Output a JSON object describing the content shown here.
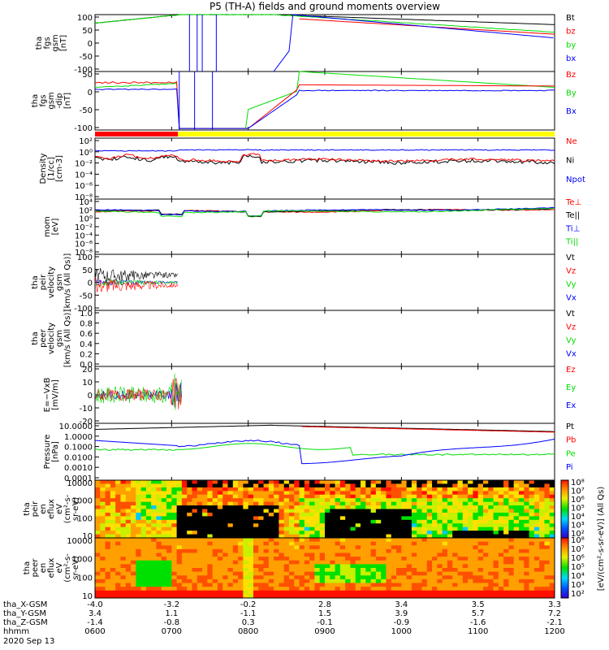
{
  "title": "P5 (TH-A) fields and ground moments overview",
  "colors": {
    "black": "#000000",
    "red": "#ff0000",
    "green": "#00dd00",
    "blue": "#0000ff",
    "yellow": "#ffff00"
  },
  "chart_data": [
    {
      "type": "line",
      "panel": "fgs_gsm",
      "ylabel": [
        "tha",
        "fgs",
        "gsm",
        "[nT]"
      ],
      "ylim": [
        -100,
        100
      ],
      "ytick_labels": [
        "100",
        "50",
        "0",
        "-50",
        "-100"
      ],
      "legend": [
        {
          "label": "Bt",
          "color": "black"
        },
        {
          "label": "bz",
          "color": "red"
        },
        {
          "label": "by",
          "color": "green"
        },
        {
          "label": "bx",
          "color": "blue"
        }
      ]
    },
    {
      "type": "line",
      "panel": "fgs_gsm_dip",
      "ylabel": [
        "tha",
        "fgs",
        "gsm",
        "-dip",
        "[nT]"
      ],
      "ylim": [
        -125,
        60
      ],
      "ytick_labels": [
        "50",
        "0",
        "-50",
        "-100"
      ],
      "legend": [
        {
          "label": "Bz",
          "color": "red"
        },
        {
          "label": "By",
          "color": "green"
        },
        {
          "label": "Bx",
          "color": "blue"
        }
      ]
    },
    {
      "type": "line",
      "panel": "density",
      "ylabel": [
        "Density",
        "[1/cc]",
        "[cm-3]"
      ],
      "log": true,
      "ytick_labels": [
        "10²",
        "10⁰",
        "10⁻²",
        "10⁻⁴",
        "10⁻⁶",
        "10⁻⁸"
      ],
      "legend": [
        {
          "label": "Ne",
          "color": "red"
        },
        {
          "label": "Ni",
          "color": "black"
        },
        {
          "label": "Npot",
          "color": "blue"
        }
      ]
    },
    {
      "type": "line",
      "panel": "temperature",
      "ylabel": [
        "mom",
        "[eV]"
      ],
      "log": true,
      "ytick_labels": [
        "10⁴",
        "10²",
        "10⁰",
        "10⁻²",
        "10⁻⁴",
        "10⁻⁶",
        "10⁻⁸"
      ],
      "legend": [
        {
          "label": "Te⊥",
          "color": "red"
        },
        {
          "label": "Te||",
          "color": "black"
        },
        {
          "label": "Ti⊥",
          "color": "blue"
        },
        {
          "label": "Ti||",
          "color": "green"
        }
      ]
    },
    {
      "type": "line",
      "panel": "peir_velocity",
      "ylabel": [
        "tha",
        "peir",
        "velocity",
        "gsm",
        "[km/s (All Qs)]"
      ],
      "ylim": [
        -100,
        100
      ],
      "ytick_labels": [
        "100",
        "50",
        "0",
        "-50",
        "-100"
      ],
      "legend": [
        {
          "label": "Vt",
          "color": "black"
        },
        {
          "label": "Vz",
          "color": "red"
        },
        {
          "label": "Vy",
          "color": "green"
        },
        {
          "label": "Vx",
          "color": "blue"
        }
      ]
    },
    {
      "type": "line",
      "panel": "peer_velocity",
      "ylabel": [
        "tha",
        "peer",
        "velocity",
        "gsm",
        "[km/s (All Qs)]"
      ],
      "ylim": [
        0,
        1
      ],
      "ytick_labels": [
        "1.0",
        "0.8",
        "0.6",
        "0.4",
        "0.2",
        "0.0"
      ],
      "legend": [
        {
          "label": "Vt",
          "color": "black"
        },
        {
          "label": "Vz",
          "color": "red"
        },
        {
          "label": "Vy",
          "color": "green"
        },
        {
          "label": "Vx",
          "color": "blue"
        }
      ]
    },
    {
      "type": "line",
      "panel": "e_field",
      "ylabel": [
        "E=−VxB",
        "[mV/m]"
      ],
      "ylim": [
        -20,
        20
      ],
      "ytick_labels": [
        "20",
        "10",
        "0",
        "-10",
        "-20"
      ],
      "legend": [
        {
          "label": "Ez",
          "color": "red"
        },
        {
          "label": "Ey",
          "color": "green"
        },
        {
          "label": "Ex",
          "color": "blue"
        }
      ]
    },
    {
      "type": "line",
      "panel": "pressure",
      "ylabel": [
        "Pressure",
        "[nPa]"
      ],
      "log": true,
      "ytick_labels": [
        "10.0000",
        "1.0000",
        "0.1000",
        "0.0100",
        "0.0010",
        "0.0001"
      ],
      "legend": [
        {
          "label": "Pt",
          "color": "black"
        },
        {
          "label": "Pb",
          "color": "red"
        },
        {
          "label": "Pe",
          "color": "green"
        },
        {
          "label": "Pi",
          "color": "blue"
        }
      ]
    },
    {
      "type": "heatmap",
      "panel": "peir_en_eflux",
      "ylabel": [
        "tha",
        "peir",
        "en",
        "eflux",
        "eV",
        "(cm²-s-",
        "sr-eV)"
      ],
      "ytick_labels": [
        "10000",
        "1000",
        "100",
        "10"
      ],
      "colorbar_ticks": [
        "10⁸",
        "10⁷",
        "10⁶",
        "10⁵",
        "10⁴",
        "10³",
        "10²"
      ]
    },
    {
      "type": "heatmap",
      "panel": "peer_en_eflux",
      "ylabel": [
        "tha",
        "peer",
        "en",
        "eflux",
        "eV",
        "(cm²-s-",
        "sr-eV)"
      ],
      "ytick_labels": [
        "10000",
        "1000",
        "100",
        "10"
      ],
      "colorbar_ticks": [
        "10⁸",
        "10⁷",
        "10⁶",
        "10⁵",
        "10⁴",
        "10³",
        "10²"
      ]
    }
  ],
  "colorbar_label": "[eV/(cm²-s-sr-eV)] (All Qs)",
  "xaxis": {
    "rows": [
      {
        "label": "tha_X-GSM",
        "values": [
          "-4.0",
          "-3.2",
          "-0.2",
          "2.8",
          "3.4",
          "3.5",
          "3.3"
        ]
      },
      {
        "label": "tha_Y-GSM",
        "values": [
          "3.4",
          "1.1",
          "-1.1",
          "1.5",
          "3.9",
          "5.7",
          "7.2"
        ]
      },
      {
        "label": "tha_Z-GSM",
        "values": [
          "-1.4",
          "-0.8",
          "0.3",
          "-0.1",
          "-0.9",
          "-1.6",
          "-2.1"
        ]
      },
      {
        "label": "hhmm",
        "values": [
          "0600",
          "0700",
          "0800",
          "0900",
          "1000",
          "1100",
          "1200"
        ]
      }
    ],
    "date": "2020 Sep 13"
  }
}
